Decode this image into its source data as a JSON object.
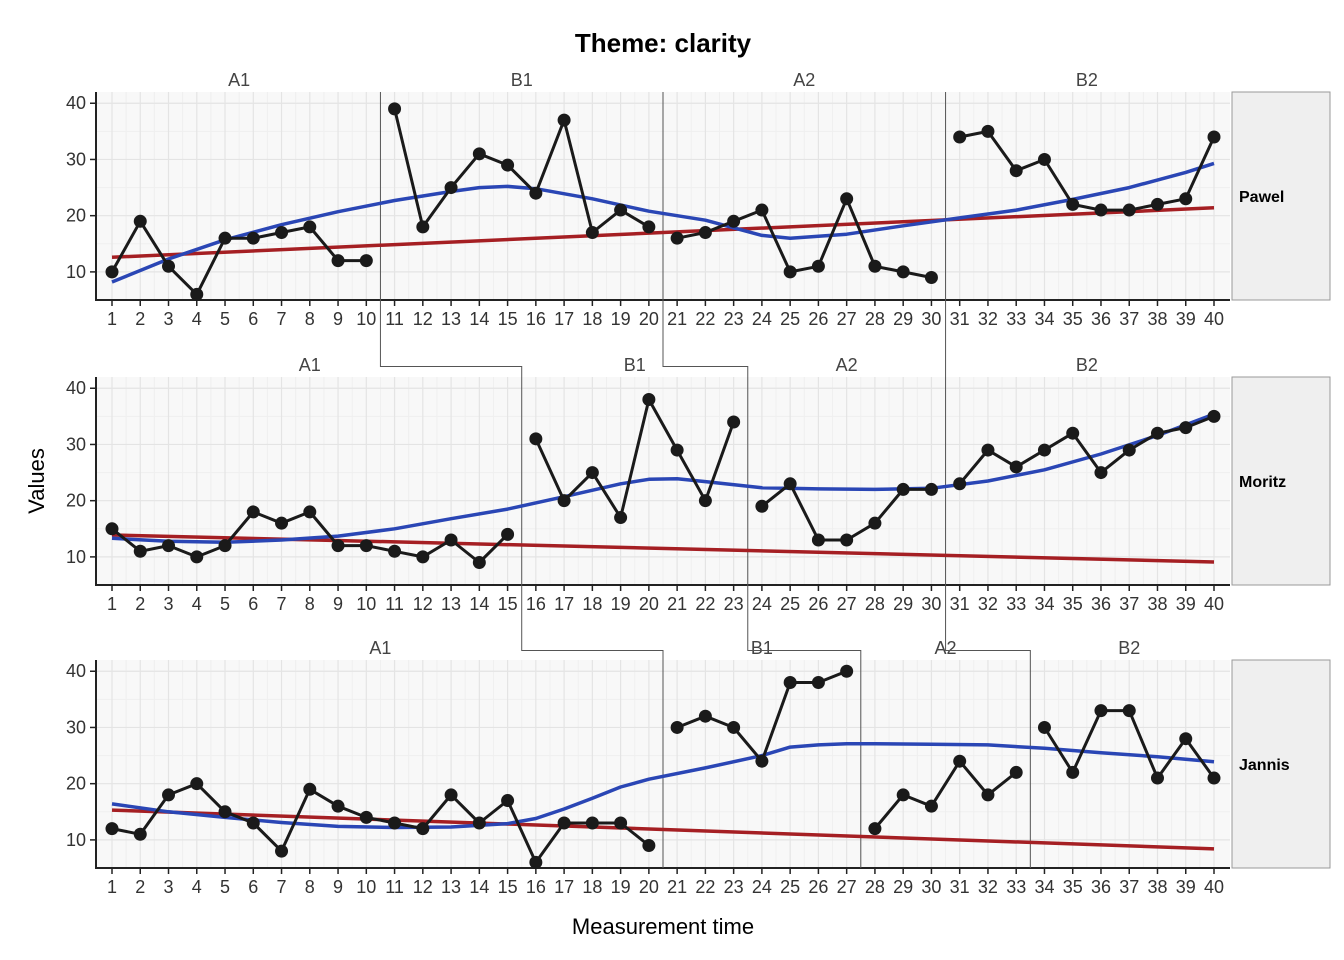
{
  "chart_data": {
    "type": "line",
    "title": "Theme: clarity",
    "xlabel": "Measurement time",
    "ylabel": "Values",
    "xlim": [
      1,
      40
    ],
    "ylim": [
      5,
      42
    ],
    "y_ticks": [
      10,
      20,
      30,
      40
    ],
    "x_ticks": [
      1,
      2,
      3,
      4,
      5,
      6,
      7,
      8,
      9,
      10,
      11,
      12,
      13,
      14,
      15,
      16,
      17,
      18,
      19,
      20,
      21,
      22,
      23,
      24,
      25,
      26,
      27,
      28,
      29,
      30,
      31,
      32,
      33,
      34,
      35,
      36,
      37,
      38,
      39,
      40
    ],
    "grid": true,
    "legend": "none",
    "colors": {
      "data": "#1a1a1a",
      "smooth": "#2a46b5",
      "trend": "#a51f23",
      "panel_bg": "#f8f8f8",
      "grid": "#e4e4e4",
      "strip_bg": "#efefef"
    },
    "panels": [
      {
        "case": "Pawel",
        "phases": [
          {
            "label": "A1",
            "start": 1,
            "end": 10
          },
          {
            "label": "B1",
            "start": 11,
            "end": 20
          },
          {
            "label": "A2",
            "start": 21,
            "end": 30
          },
          {
            "label": "B2",
            "start": 31,
            "end": 40
          }
        ],
        "values": [
          10,
          19,
          11,
          6,
          16,
          16,
          17,
          18,
          12,
          12,
          39,
          18,
          25,
          31,
          29,
          24,
          37,
          17,
          21,
          18,
          16,
          17,
          19,
          21,
          10,
          11,
          23,
          11,
          10,
          9,
          34,
          35,
          28,
          30,
          22,
          21,
          21,
          22,
          23,
          34
        ],
        "trend": [
          12.6,
          21.4
        ],
        "smooth": [
          [
            1,
            8.2
          ],
          [
            3,
            12.3
          ],
          [
            5,
            15.7
          ],
          [
            7,
            18.4
          ],
          [
            9,
            20.7
          ],
          [
            11,
            22.7
          ],
          [
            13,
            24.3
          ],
          [
            14,
            25
          ],
          [
            15,
            25.2
          ],
          [
            16,
            24.8
          ],
          [
            18,
            23
          ],
          [
            20,
            20.8
          ],
          [
            22,
            19.2
          ],
          [
            24,
            16.5
          ],
          [
            25,
            16
          ],
          [
            27,
            16.7
          ],
          [
            29,
            18.2
          ],
          [
            31,
            19.6
          ],
          [
            33,
            21
          ],
          [
            35,
            22.9
          ],
          [
            37,
            25
          ],
          [
            39,
            27.7
          ],
          [
            40,
            29.3
          ]
        ]
      },
      {
        "case": "Moritz",
        "phases": [
          {
            "label": "A1",
            "start": 1,
            "end": 15
          },
          {
            "label": "B1",
            "start": 16,
            "end": 23
          },
          {
            "label": "A2",
            "start": 24,
            "end": 30
          },
          {
            "label": "B2",
            "start": 31,
            "end": 40
          }
        ],
        "values": [
          15,
          11,
          12,
          10,
          12,
          18,
          16,
          18,
          12,
          12,
          11,
          10,
          13,
          9,
          14,
          31,
          20,
          25,
          17,
          38,
          29,
          20,
          34,
          19,
          23,
          13,
          13,
          16,
          22,
          22,
          23,
          29,
          26,
          29,
          32,
          25,
          29,
          32,
          33,
          35
        ],
        "trend": [
          13.9,
          9.1
        ],
        "smooth": [
          [
            1,
            13.3
          ],
          [
            3,
            12.8
          ],
          [
            5,
            12.6
          ],
          [
            7,
            13
          ],
          [
            9,
            13.7
          ],
          [
            11,
            15
          ],
          [
            13,
            16.8
          ],
          [
            15,
            18.5
          ],
          [
            17,
            20.7
          ],
          [
            19,
            23
          ],
          [
            20,
            23.8
          ],
          [
            21,
            23.9
          ],
          [
            22,
            23.4
          ],
          [
            24,
            22.3
          ],
          [
            26,
            22.1
          ],
          [
            28,
            22
          ],
          [
            30,
            22.2
          ],
          [
            32,
            23.5
          ],
          [
            34,
            25.5
          ],
          [
            36,
            28.3
          ],
          [
            38,
            31.6
          ],
          [
            40,
            35.4
          ]
        ]
      },
      {
        "case": "Jannis",
        "phases": [
          {
            "label": "A1",
            "start": 1,
            "end": 20
          },
          {
            "label": "B1",
            "start": 21,
            "end": 27
          },
          {
            "label": "A2",
            "start": 28,
            "end": 33
          },
          {
            "label": "B2",
            "start": 34,
            "end": 40
          }
        ],
        "values": [
          12,
          11,
          18,
          20,
          15,
          13,
          8,
          19,
          16,
          14,
          13,
          12,
          18,
          13,
          17,
          6,
          13,
          13,
          13,
          9,
          30,
          32,
          30,
          24,
          38,
          38,
          40,
          12,
          18,
          16,
          24,
          18,
          22,
          30,
          22,
          33,
          33,
          21,
          28,
          21
        ],
        "trend": [
          15.3,
          8.4
        ],
        "smooth": [
          [
            1,
            16.4
          ],
          [
            3,
            15
          ],
          [
            5,
            14
          ],
          [
            7,
            13.1
          ],
          [
            9,
            12.4
          ],
          [
            11,
            12.2
          ],
          [
            13,
            12.3
          ],
          [
            15,
            12.9
          ],
          [
            16,
            13.8
          ],
          [
            17,
            15.5
          ],
          [
            18,
            17.4
          ],
          [
            19,
            19.4
          ],
          [
            20,
            20.8
          ],
          [
            22,
            22.8
          ],
          [
            24,
            25
          ],
          [
            25,
            26.5
          ],
          [
            26,
            26.9
          ],
          [
            27,
            27.1
          ],
          [
            28,
            27.1
          ],
          [
            30,
            27
          ],
          [
            32,
            26.9
          ],
          [
            34,
            26.3
          ],
          [
            36,
            25.5
          ],
          [
            38,
            24.8
          ],
          [
            40,
            23.9
          ]
        ]
      }
    ]
  }
}
